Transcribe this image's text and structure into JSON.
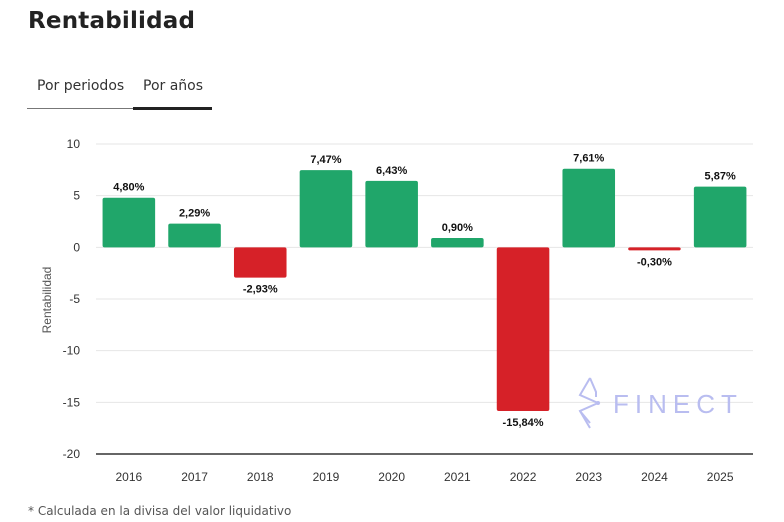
{
  "header": {
    "title": "Rentabilidad"
  },
  "tabs": [
    {
      "label": "Por periodos",
      "active": false
    },
    {
      "label": "Por años",
      "active": true
    }
  ],
  "footnote": "* Calculada en la divisa del valor liquidativo",
  "watermark": "FINECT",
  "colors": {
    "positive": "#20a66a",
    "negative": "#d62128",
    "grid": "#e6e6e6",
    "axis": "#333333",
    "watermark": "#b9bdf0"
  },
  "chart_data": {
    "type": "bar",
    "title": "",
    "xlabel": "",
    "ylabel": "Rentabilidad",
    "categories": [
      "2016",
      "2017",
      "2018",
      "2019",
      "2020",
      "2021",
      "2022",
      "2023",
      "2024",
      "2025"
    ],
    "values": [
      4.8,
      2.29,
      -2.93,
      7.47,
      6.43,
      0.9,
      -15.84,
      7.61,
      -0.3,
      5.87
    ],
    "data_labels": [
      "4,80%",
      "2,29%",
      "-2,93%",
      "7,47%",
      "6,43%",
      "0,90%",
      "-15,84%",
      "7,61%",
      "-0,30%",
      "5,87%"
    ],
    "ylim": [
      -20,
      10
    ],
    "yticks": [
      10,
      5,
      0,
      -5,
      -10,
      -15,
      -20
    ],
    "grid": true,
    "legend": "none"
  }
}
